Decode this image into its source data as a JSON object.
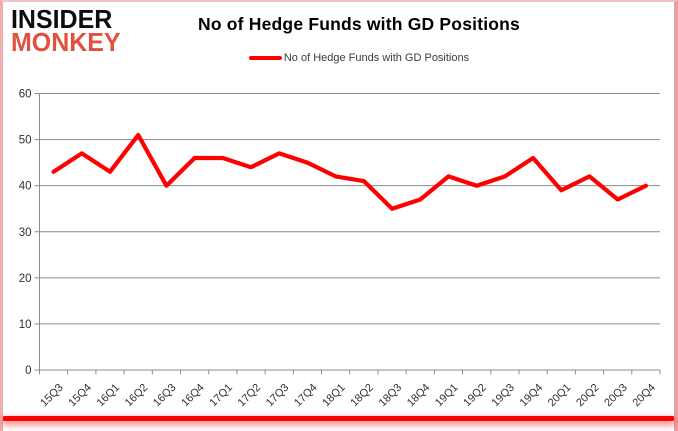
{
  "logo": {
    "line1": "INSIDER",
    "line2": "MONKEY"
  },
  "header": {
    "title": "No of Hedge Funds with GD Positions"
  },
  "legend": {
    "label": "No of Hedge Funds with GD Positions"
  },
  "colors": {
    "line": "#fe0000",
    "grid": "#8c8c8c",
    "axis": "#8c8c8c",
    "logo_black": "#0d0d0d",
    "logo_red": "#e2513d",
    "frame_pink": "#efaeae",
    "bottom_bar_red": "#fb0300",
    "tick_text": "#303030"
  },
  "chart_data": {
    "type": "line",
    "title": "No of Hedge Funds with GD Positions",
    "xlabel": "",
    "ylabel": "",
    "categories": [
      "15Q3",
      "15Q4",
      "16Q1",
      "16Q2",
      "16Q3",
      "16Q4",
      "17Q1",
      "17Q2",
      "17Q3",
      "17Q4",
      "18Q1",
      "18Q2",
      "18Q3",
      "18Q4",
      "19Q1",
      "19Q2",
      "19Q3",
      "19Q4",
      "20Q1",
      "20Q2",
      "20Q3",
      "20Q4"
    ],
    "series": [
      {
        "name": "No of Hedge Funds with GD Positions",
        "color": "#fe0000",
        "values": [
          43,
          47,
          43,
          51,
          40,
          46,
          46,
          44,
          47,
          45,
          42,
          41,
          35,
          37,
          42,
          40,
          42,
          46,
          39,
          42,
          37,
          40
        ]
      }
    ],
    "ylim": [
      0,
      60
    ],
    "yticks": [
      0,
      10,
      20,
      30,
      40,
      50,
      60
    ],
    "grid": true,
    "legend_position": "top-center"
  }
}
